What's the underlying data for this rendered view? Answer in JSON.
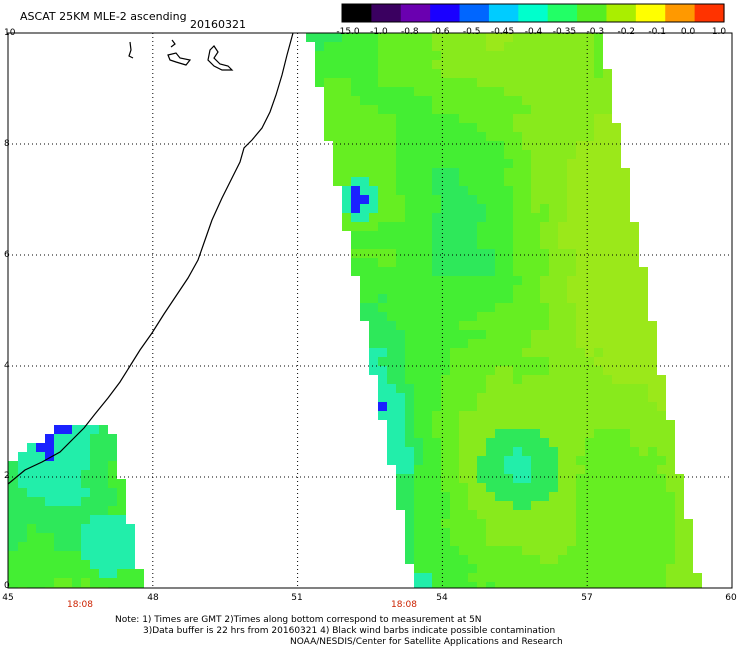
{
  "header": {
    "title": "ASCAT 25KM MLE-2 ascending",
    "date": "20160321"
  },
  "colorbar": {
    "labels": [
      "-15.0",
      "-1.0",
      "-0.8",
      "-0.6",
      "-0.5",
      "-0.45",
      "-0.4",
      "-0.35",
      "-0.3",
      "-0.2",
      "-0.1",
      "0.0",
      "1.0"
    ],
    "colors": [
      "#000000",
      "#3a0060",
      "#6a00b0",
      "#1a00ff",
      "#0066ff",
      "#00ccff",
      "#00ffcc",
      "#22ff66",
      "#55ee22",
      "#aaee00",
      "#ffff00",
      "#ff9900",
      "#ff3300"
    ]
  },
  "axes": {
    "x_ticks": [
      "45",
      "48",
      "51",
      "54",
      "57",
      "60"
    ],
    "y_ticks": [
      "0",
      "2",
      "4",
      "6",
      "8",
      "10"
    ],
    "x_range": [
      45,
      60
    ],
    "y_range": [
      0,
      10
    ],
    "pass_times": [
      {
        "lon": 47.25,
        "text": "18:08"
      },
      {
        "lon": 53.2,
        "text": "18:08"
      }
    ]
  },
  "notes": {
    "line1": "Note: 1) Times are GMT 2)Times along bottom correspond to measurement at 5N",
    "line2": "3)Data buffer is 22 hrs from 20160321 4) Black wind barbs indicate possible contamination",
    "line3": "NOAA/NESDIS/Center for Satellite Applications and Research"
  },
  "map_colors": {
    "swath_green": "#55ee22",
    "swath_yellowgreen": "#9be81a",
    "swath_cyan": "#22eeaa",
    "swath_blue": "#1a22ff",
    "coastline": "#000000"
  }
}
